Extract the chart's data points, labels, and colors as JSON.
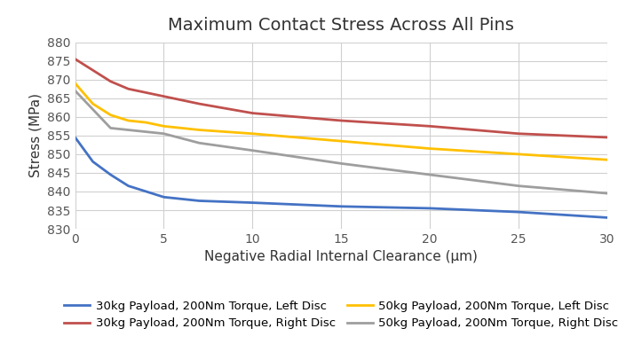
{
  "title": "Maximum Contact Stress Across All Pins",
  "xlabel": "Negative Radial Internal Clearance (μm)",
  "ylabel": "Stress (MPa)",
  "xlim": [
    0,
    30
  ],
  "ylim": [
    830,
    880
  ],
  "yticks": [
    830,
    835,
    840,
    845,
    850,
    855,
    860,
    865,
    870,
    875,
    880
  ],
  "xticks": [
    0,
    5,
    10,
    15,
    20,
    25,
    30
  ],
  "series": [
    {
      "label": "30kg Payload, 200Nm Torque, Left Disc",
      "color": "#4472C4",
      "x": [
        0,
        1,
        2,
        3,
        4,
        5,
        7,
        10,
        15,
        20,
        25,
        30
      ],
      "y": [
        854.5,
        848.0,
        844.5,
        841.5,
        840.0,
        838.5,
        837.5,
        837.0,
        836.0,
        835.5,
        834.5,
        833.0
      ]
    },
    {
      "label": "30kg Payload, 200Nm Torque, Right Disc",
      "color": "#C0504D",
      "x": [
        0,
        1,
        2,
        3,
        4,
        5,
        7,
        10,
        15,
        20,
        25,
        30
      ],
      "y": [
        875.5,
        872.5,
        869.5,
        867.5,
        866.5,
        865.5,
        863.5,
        861.0,
        859.0,
        857.5,
        855.5,
        854.5
      ]
    },
    {
      "label": "50kg Payload, 200Nm Torque, Left Disc",
      "color": "#FFC000",
      "x": [
        0,
        1,
        2,
        3,
        4,
        5,
        7,
        10,
        15,
        20,
        25,
        30
      ],
      "y": [
        869.0,
        863.5,
        860.5,
        859.0,
        858.5,
        857.5,
        856.5,
        855.5,
        853.5,
        851.5,
        850.0,
        848.5
      ]
    },
    {
      "label": "50kg Payload, 200Nm Torque, Right Disc",
      "color": "#9E9E9E",
      "x": [
        0,
        1,
        2,
        3,
        4,
        5,
        7,
        10,
        15,
        20,
        25,
        30
      ],
      "y": [
        867.0,
        862.0,
        857.0,
        856.5,
        856.0,
        855.5,
        853.0,
        851.0,
        847.5,
        844.5,
        841.5,
        839.5
      ]
    }
  ],
  "background_color": "#ffffff",
  "plot_bg_color": "#ffffff",
  "legend_ncol": 2,
  "title_fontsize": 14,
  "axis_fontsize": 11,
  "tick_fontsize": 10,
  "legend_fontsize": 9.5
}
